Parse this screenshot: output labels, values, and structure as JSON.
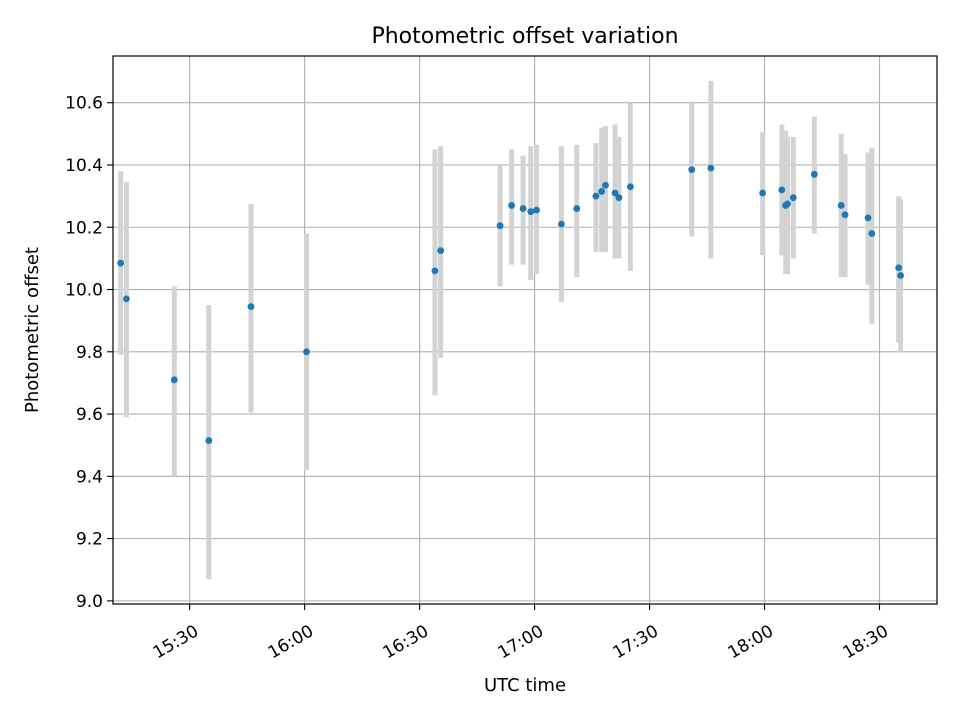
{
  "chart_data": {
    "type": "scatter",
    "title": "Photometric offset variation",
    "xlabel": "UTC time",
    "ylabel": "Photometric offset",
    "x_format": "HH:MM",
    "xlim": [
      "15:10",
      "18:45"
    ],
    "ylim": [
      8.99,
      10.75
    ],
    "x_ticks": [
      "15:30",
      "16:00",
      "16:30",
      "17:00",
      "17:30",
      "18:00",
      "18:30"
    ],
    "y_ticks": [
      9.0,
      9.2,
      9.4,
      9.6,
      9.8,
      10.0,
      10.2,
      10.4,
      10.6
    ],
    "y_tick_labels": [
      "9.0",
      "9.2",
      "9.4",
      "9.6",
      "9.8",
      "10.0",
      "10.2",
      "10.4",
      "10.6"
    ],
    "grid": true,
    "point_color": "#1f77b4",
    "errorbar_color": "#d3d3d3",
    "points": [
      {
        "x": "15:12:00",
        "y": 10.085,
        "lo": 9.79,
        "hi": 10.38
      },
      {
        "x": "15:13:30",
        "y": 9.97,
        "lo": 9.59,
        "hi": 10.345
      },
      {
        "x": "15:26:00",
        "y": 9.71,
        "lo": 9.4,
        "hi": 10.01
      },
      {
        "x": "15:35:00",
        "y": 9.515,
        "lo": 9.07,
        "hi": 9.95
      },
      {
        "x": "15:46:00",
        "y": 9.945,
        "lo": 9.605,
        "hi": 10.275
      },
      {
        "x": "16:00:30",
        "y": 9.8,
        "lo": 9.42,
        "hi": 10.18
      },
      {
        "x": "16:34:00",
        "y": 10.06,
        "lo": 9.66,
        "hi": 10.45
      },
      {
        "x": "16:35:30",
        "y": 10.125,
        "lo": 9.78,
        "hi": 10.46
      },
      {
        "x": "16:51:00",
        "y": 10.205,
        "lo": 10.01,
        "hi": 10.4
      },
      {
        "x": "16:54:00",
        "y": 10.27,
        "lo": 10.08,
        "hi": 10.45
      },
      {
        "x": "16:57:00",
        "y": 10.26,
        "lo": 10.08,
        "hi": 10.43
      },
      {
        "x": "16:59:00",
        "y": 10.25,
        "lo": 10.03,
        "hi": 10.46
      },
      {
        "x": "17:00:30",
        "y": 10.255,
        "lo": 10.05,
        "hi": 10.465
      },
      {
        "x": "17:07:00",
        "y": 10.21,
        "lo": 9.96,
        "hi": 10.46
      },
      {
        "x": "17:11:00",
        "y": 10.26,
        "lo": 10.04,
        "hi": 10.465
      },
      {
        "x": "17:16:00",
        "y": 10.3,
        "lo": 10.12,
        "hi": 10.47
      },
      {
        "x": "17:17:30",
        "y": 10.315,
        "lo": 10.12,
        "hi": 10.52
      },
      {
        "x": "17:18:30",
        "y": 10.335,
        "lo": 10.12,
        "hi": 10.525
      },
      {
        "x": "17:21:00",
        "y": 10.31,
        "lo": 10.1,
        "hi": 10.53
      },
      {
        "x": "17:22:00",
        "y": 10.295,
        "lo": 10.1,
        "hi": 10.49
      },
      {
        "x": "17:25:00",
        "y": 10.33,
        "lo": 10.06,
        "hi": 10.6
      },
      {
        "x": "17:41:00",
        "y": 10.385,
        "lo": 10.17,
        "hi": 10.6
      },
      {
        "x": "17:46:00",
        "y": 10.39,
        "lo": 10.1,
        "hi": 10.67
      },
      {
        "x": "17:59:30",
        "y": 10.31,
        "lo": 10.11,
        "hi": 10.505
      },
      {
        "x": "18:04:30",
        "y": 10.32,
        "lo": 10.11,
        "hi": 10.53
      },
      {
        "x": "18:05:30",
        "y": 10.27,
        "lo": 10.05,
        "hi": 10.51
      },
      {
        "x": "18:06:00",
        "y": 10.275,
        "lo": 10.05,
        "hi": 10.49
      },
      {
        "x": "18:07:30",
        "y": 10.295,
        "lo": 10.1,
        "hi": 10.49
      },
      {
        "x": "18:13:00",
        "y": 10.37,
        "lo": 10.18,
        "hi": 10.555
      },
      {
        "x": "18:20:00",
        "y": 10.27,
        "lo": 10.04,
        "hi": 10.5
      },
      {
        "x": "18:21:00",
        "y": 10.24,
        "lo": 10.04,
        "hi": 10.435
      },
      {
        "x": "18:27:00",
        "y": 10.23,
        "lo": 10.015,
        "hi": 10.44
      },
      {
        "x": "18:28:00",
        "y": 10.18,
        "lo": 9.89,
        "hi": 10.455
      },
      {
        "x": "18:35:00",
        "y": 10.07,
        "lo": 9.83,
        "hi": 10.3
      },
      {
        "x": "18:35:30",
        "y": 10.045,
        "lo": 9.8,
        "hi": 10.29
      }
    ]
  }
}
